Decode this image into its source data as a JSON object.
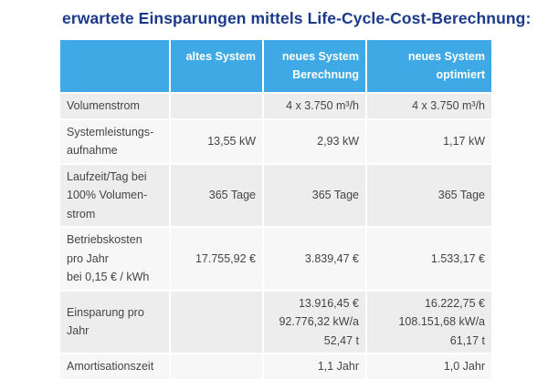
{
  "title": "erwartete Einsparungen mittels Life-Cycle-Cost-Berechnung:",
  "headers": [
    "",
    "altes System",
    "neues System Berechnung",
    "neues System optimiert"
  ],
  "rows": [
    {
      "label": "Volumenstrom",
      "alt": "",
      "neu": "4 x 3.750 m³/h",
      "opt": "4 x 3.750 m³/h"
    },
    {
      "label": "Systemleistungs-aufnahme",
      "alt": "13,55 kW",
      "neu": "2,93 kW",
      "opt": "1,17 kW"
    },
    {
      "label": "Laufzeit/Tag bei 100% Volumen-strom",
      "alt": "365 Tage",
      "neu": "365 Tage",
      "opt": "365 Tage"
    },
    {
      "label": "Betriebskosten pro Jahr bei 0,15 € / kWh",
      "alt": "17.755,92 €",
      "neu": "3.839,47 €",
      "opt": "1.533,17 €"
    },
    {
      "label": "Einsparung pro Jahr",
      "alt": "",
      "neu": [
        "13.916,45 €",
        "92.776,32 kW/a",
        "52,47 t"
      ],
      "opt": [
        "16.222,75 €",
        "108.151,68 kW/a",
        "61,17 t"
      ]
    },
    {
      "label": "Amortisationszeit",
      "alt": "",
      "neu": "1,1 Jahr",
      "opt": "1,0 Jahr"
    }
  ]
}
